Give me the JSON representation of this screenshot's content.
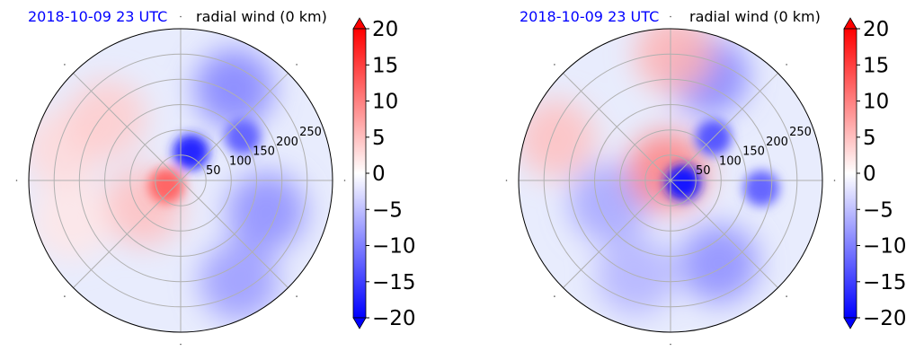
{
  "chart_data": [
    {
      "type": "heatmap",
      "projection": "polar",
      "title_left": "2018-10-09 23 UTC",
      "title_right": "radial wind (0 km)",
      "title_left_color": "#0000ff",
      "radial_ticks": [
        50,
        100,
        150,
        200,
        250
      ],
      "rlim": [
        0,
        300
      ],
      "grid": true,
      "angular_gridlines_deg": [
        0,
        45,
        90,
        135,
        180,
        225,
        270,
        315
      ],
      "colorbar": {
        "ticks": [
          "20",
          "15",
          "10",
          "5",
          "0",
          "−10",
          "−15",
          "−20"
        ],
        "tick_values": [
          20,
          15,
          10,
          5,
          0,
          -10,
          -15,
          -20
        ],
        "minus5_label": "−5",
        "range": [
          -20,
          20
        ],
        "extend": "both",
        "colormap": "bwr"
      },
      "field_features": [
        {
          "value": -17,
          "r": 60,
          "theta": 70
        },
        {
          "value": -12,
          "r": 150,
          "theta": 35
        },
        {
          "value": -10,
          "r": 210,
          "theta": 60
        },
        {
          "value": -9,
          "r": 180,
          "theta": 340
        },
        {
          "value": -8,
          "r": 230,
          "theta": 300
        },
        {
          "value": 12,
          "r": 30,
          "theta": 200
        },
        {
          "value": 5,
          "r": 90,
          "theta": 215
        },
        {
          "value": 3,
          "r": 240,
          "theta": 165
        },
        {
          "value": 4,
          "r": 190,
          "theta": 140
        },
        {
          "value": 2,
          "r": 230,
          "theta": 200
        }
      ]
    },
    {
      "type": "heatmap",
      "projection": "polar",
      "title_left": "2018-10-09 23 UTC",
      "title_right": "radial wind (0 km)",
      "title_left_color": "#0000ff",
      "radial_ticks": [
        50,
        100,
        150,
        200,
        250
      ],
      "rlim": [
        0,
        300
      ],
      "grid": true,
      "angular_gridlines_deg": [
        0,
        45,
        90,
        135,
        180,
        225,
        270,
        315
      ],
      "colorbar": {
        "ticks": [
          "20",
          "15",
          "10",
          "5",
          "0",
          "−10",
          "−15",
          "−20"
        ],
        "tick_values": [
          20,
          15,
          10,
          5,
          0,
          -10,
          -15,
          -20
        ],
        "minus5_label": "−5",
        "range": [
          -20,
          20
        ],
        "extend": "both",
        "colormap": "bwr"
      },
      "field_features": [
        {
          "value": -18,
          "r": 25,
          "theta": 350
        },
        {
          "value": -13,
          "r": 120,
          "theta": 45
        },
        {
          "value": -12,
          "r": 180,
          "theta": 355
        },
        {
          "value": -10,
          "r": 220,
          "theta": 70
        },
        {
          "value": -9,
          "r": 190,
          "theta": 300
        },
        {
          "value": -7,
          "r": 130,
          "theta": 200
        },
        {
          "value": -6,
          "r": 200,
          "theta": 250
        },
        {
          "value": 10,
          "r": 20,
          "theta": 110
        },
        {
          "value": 6,
          "r": 250,
          "theta": 88
        },
        {
          "value": 5,
          "r": 240,
          "theta": 160
        }
      ]
    }
  ]
}
